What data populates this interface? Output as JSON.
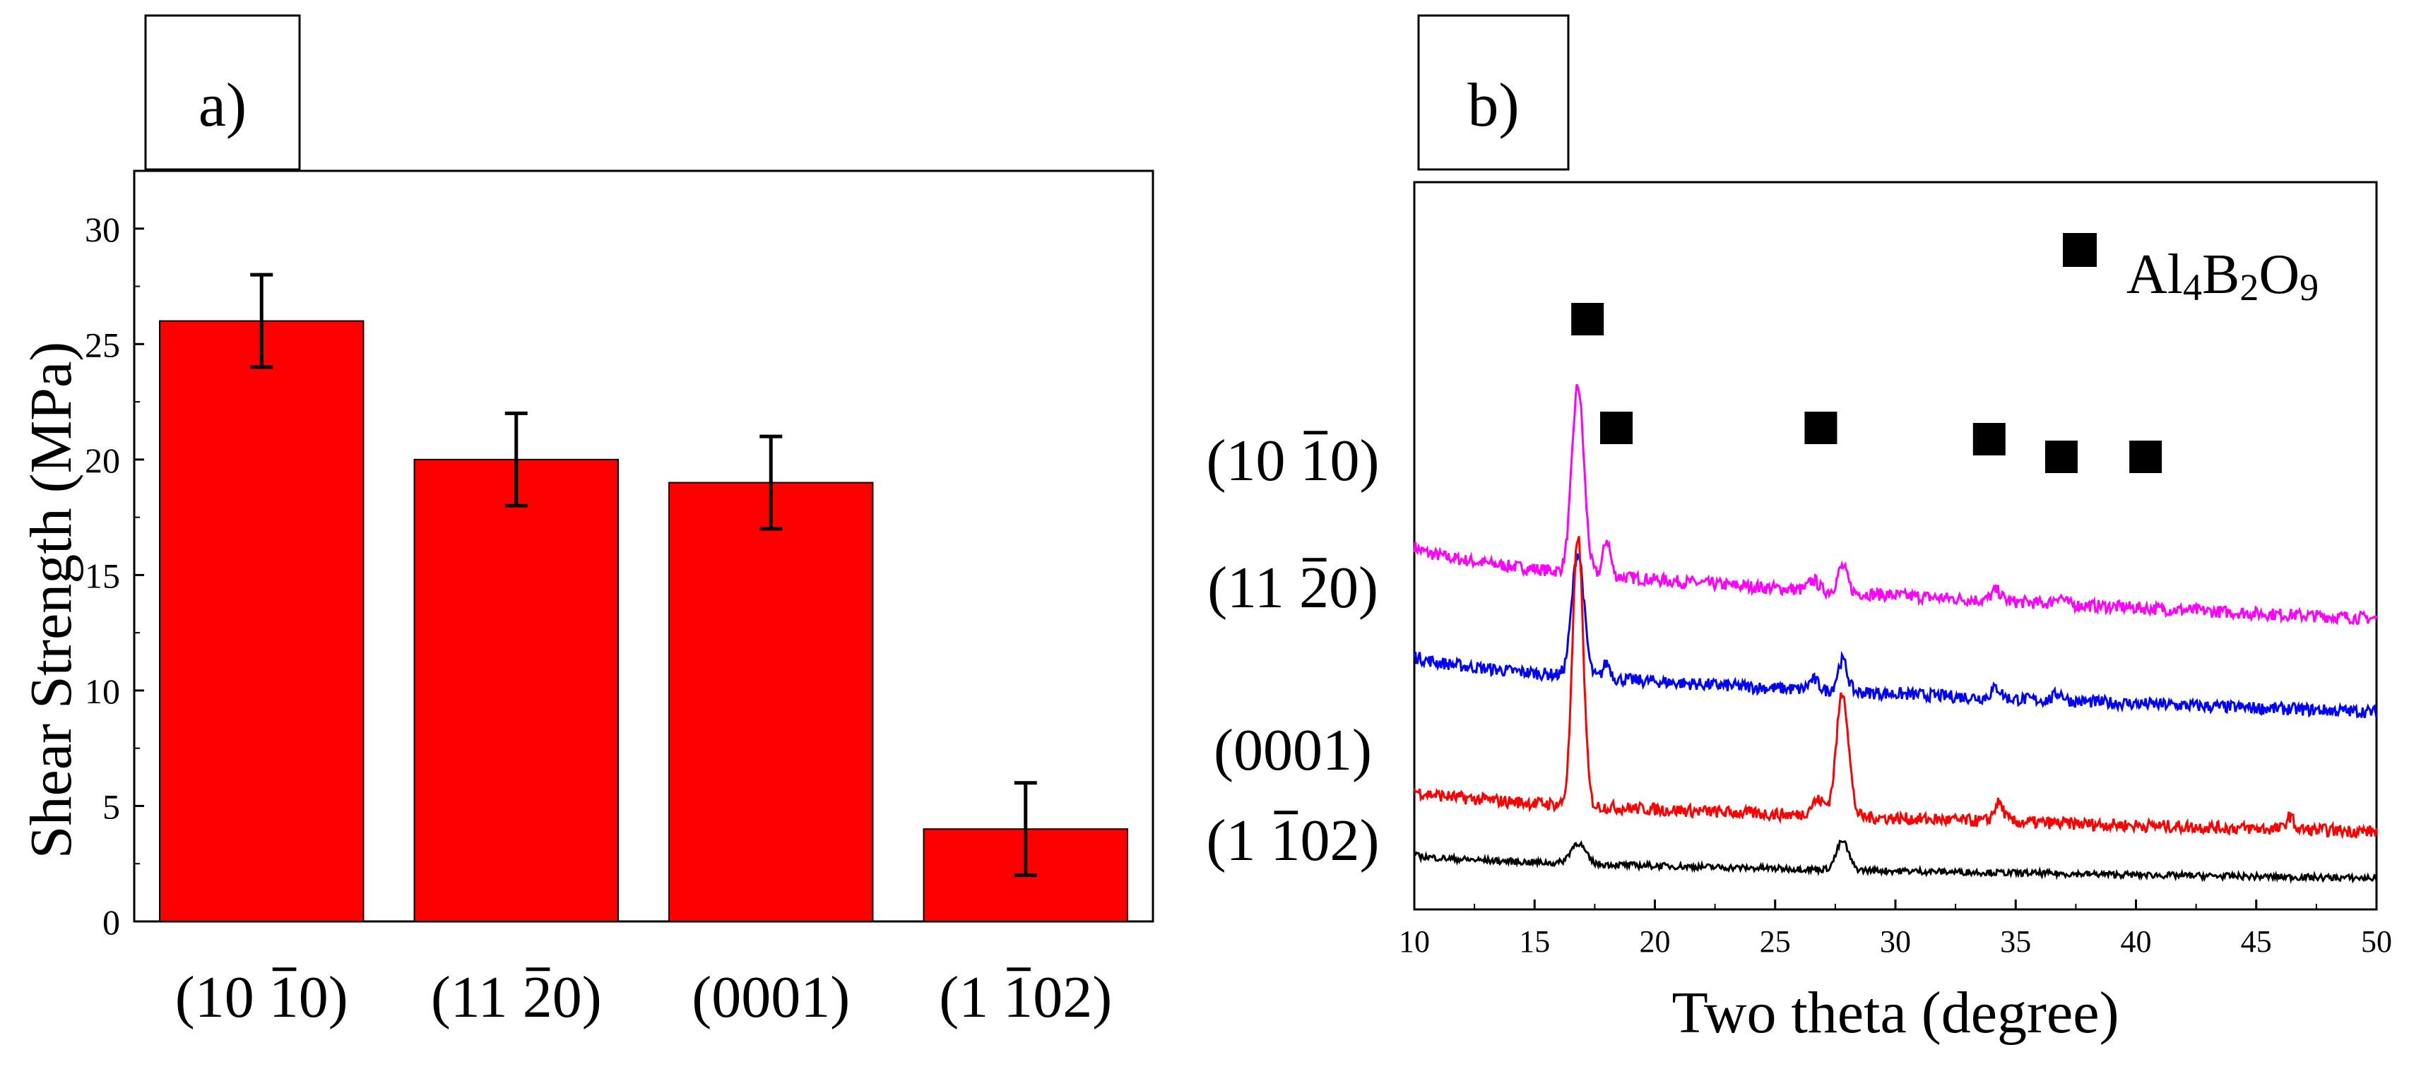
{
  "chart_data": [
    {
      "panel_label": "a)",
      "type": "bar",
      "categories": [
        {
          "prefix": "(10 ",
          "bar_digit": "1",
          "suffix": "0)"
        },
        {
          "prefix": "(11 ",
          "bar_digit": "2",
          "suffix": "0)"
        },
        {
          "prefix": "(0001)",
          "bar_digit": "",
          "suffix": ""
        },
        {
          "prefix": "(1 ",
          "bar_digit": "1",
          "suffix": "02)"
        }
      ],
      "values": [
        26,
        20,
        19,
        4
      ],
      "errors": [
        2,
        2,
        2,
        2
      ],
      "ylabel": "Shear Strength (MPa)",
      "xlabel": "",
      "ylim": [
        0,
        32.5
      ],
      "yticks": [
        0,
        5,
        10,
        15,
        20,
        25,
        30
      ],
      "bar_color": "#ff0000"
    },
    {
      "panel_label": "b)",
      "type": "line",
      "xlabel": "Two theta (degree)",
      "ylabel": "",
      "xlim": [
        10,
        50
      ],
      "xticks": [
        10,
        15,
        20,
        25,
        30,
        35,
        40,
        45,
        50
      ],
      "legend": {
        "marker": "square",
        "main": "Al",
        "sub1": "4",
        "mid": "B",
        "sub2": "2",
        "end": "O",
        "sub3": "9"
      },
      "phase_marker_positions_two_theta": [
        17.2,
        18.4,
        26.9,
        33.9,
        36.9,
        40.4
      ],
      "series": [
        {
          "name": {
            "prefix": "(10 ",
            "bar_digit": "1",
            "suffix": "0)"
          },
          "color": "#ff00ff",
          "baseline_start": 6.5,
          "baseline_end": 5.1,
          "noise": 0.12,
          "peaks": [
            [
              16.8,
              3.6,
              0.25
            ],
            [
              18.0,
              0.7,
              0.15
            ],
            [
              27.8,
              0.5,
              0.2
            ],
            [
              26.6,
              0.2,
              0.2
            ],
            [
              34.2,
              0.2,
              0.2
            ],
            [
              36.8,
              0.15,
              0.2
            ]
          ]
        },
        {
          "name": {
            "prefix": "(11 ",
            "bar_digit": "2",
            "suffix": "0)"
          },
          "color": "#0000ff",
          "baseline_start": 4.4,
          "baseline_end": 3.3,
          "noise": 0.12,
          "peaks": [
            [
              16.8,
              2.4,
              0.25
            ],
            [
              18.0,
              0.3,
              0.15
            ],
            [
              27.8,
              0.6,
              0.2
            ],
            [
              26.6,
              0.2,
              0.2
            ],
            [
              34.2,
              0.2,
              0.2
            ],
            [
              36.8,
              0.15,
              0.2
            ]
          ]
        },
        {
          "name": {
            "prefix": "(0001)",
            "bar_digit": "",
            "suffix": ""
          },
          "color": "#ff0000",
          "baseline_start": 1.8,
          "baseline_end": 1.0,
          "noise": 0.12,
          "peaks": [
            [
              16.8,
              5.2,
              0.22
            ],
            [
              27.8,
              2.4,
              0.25
            ],
            [
              26.8,
              0.3,
              0.3
            ],
            [
              34.3,
              0.35,
              0.2
            ],
            [
              46.4,
              0.25,
              0.15
            ]
          ]
        },
        {
          "name": {
            "prefix": "(1 ",
            "bar_digit": "1",
            "suffix": "02)"
          },
          "color": "#000000",
          "baseline_start": 0.55,
          "baseline_end": 0.1,
          "noise": 0.06,
          "peaks": [
            [
              16.8,
              0.4,
              0.3
            ],
            [
              27.8,
              0.55,
              0.25
            ]
          ]
        }
      ],
      "ylim": [
        -0.5,
        13.5
      ]
    }
  ]
}
